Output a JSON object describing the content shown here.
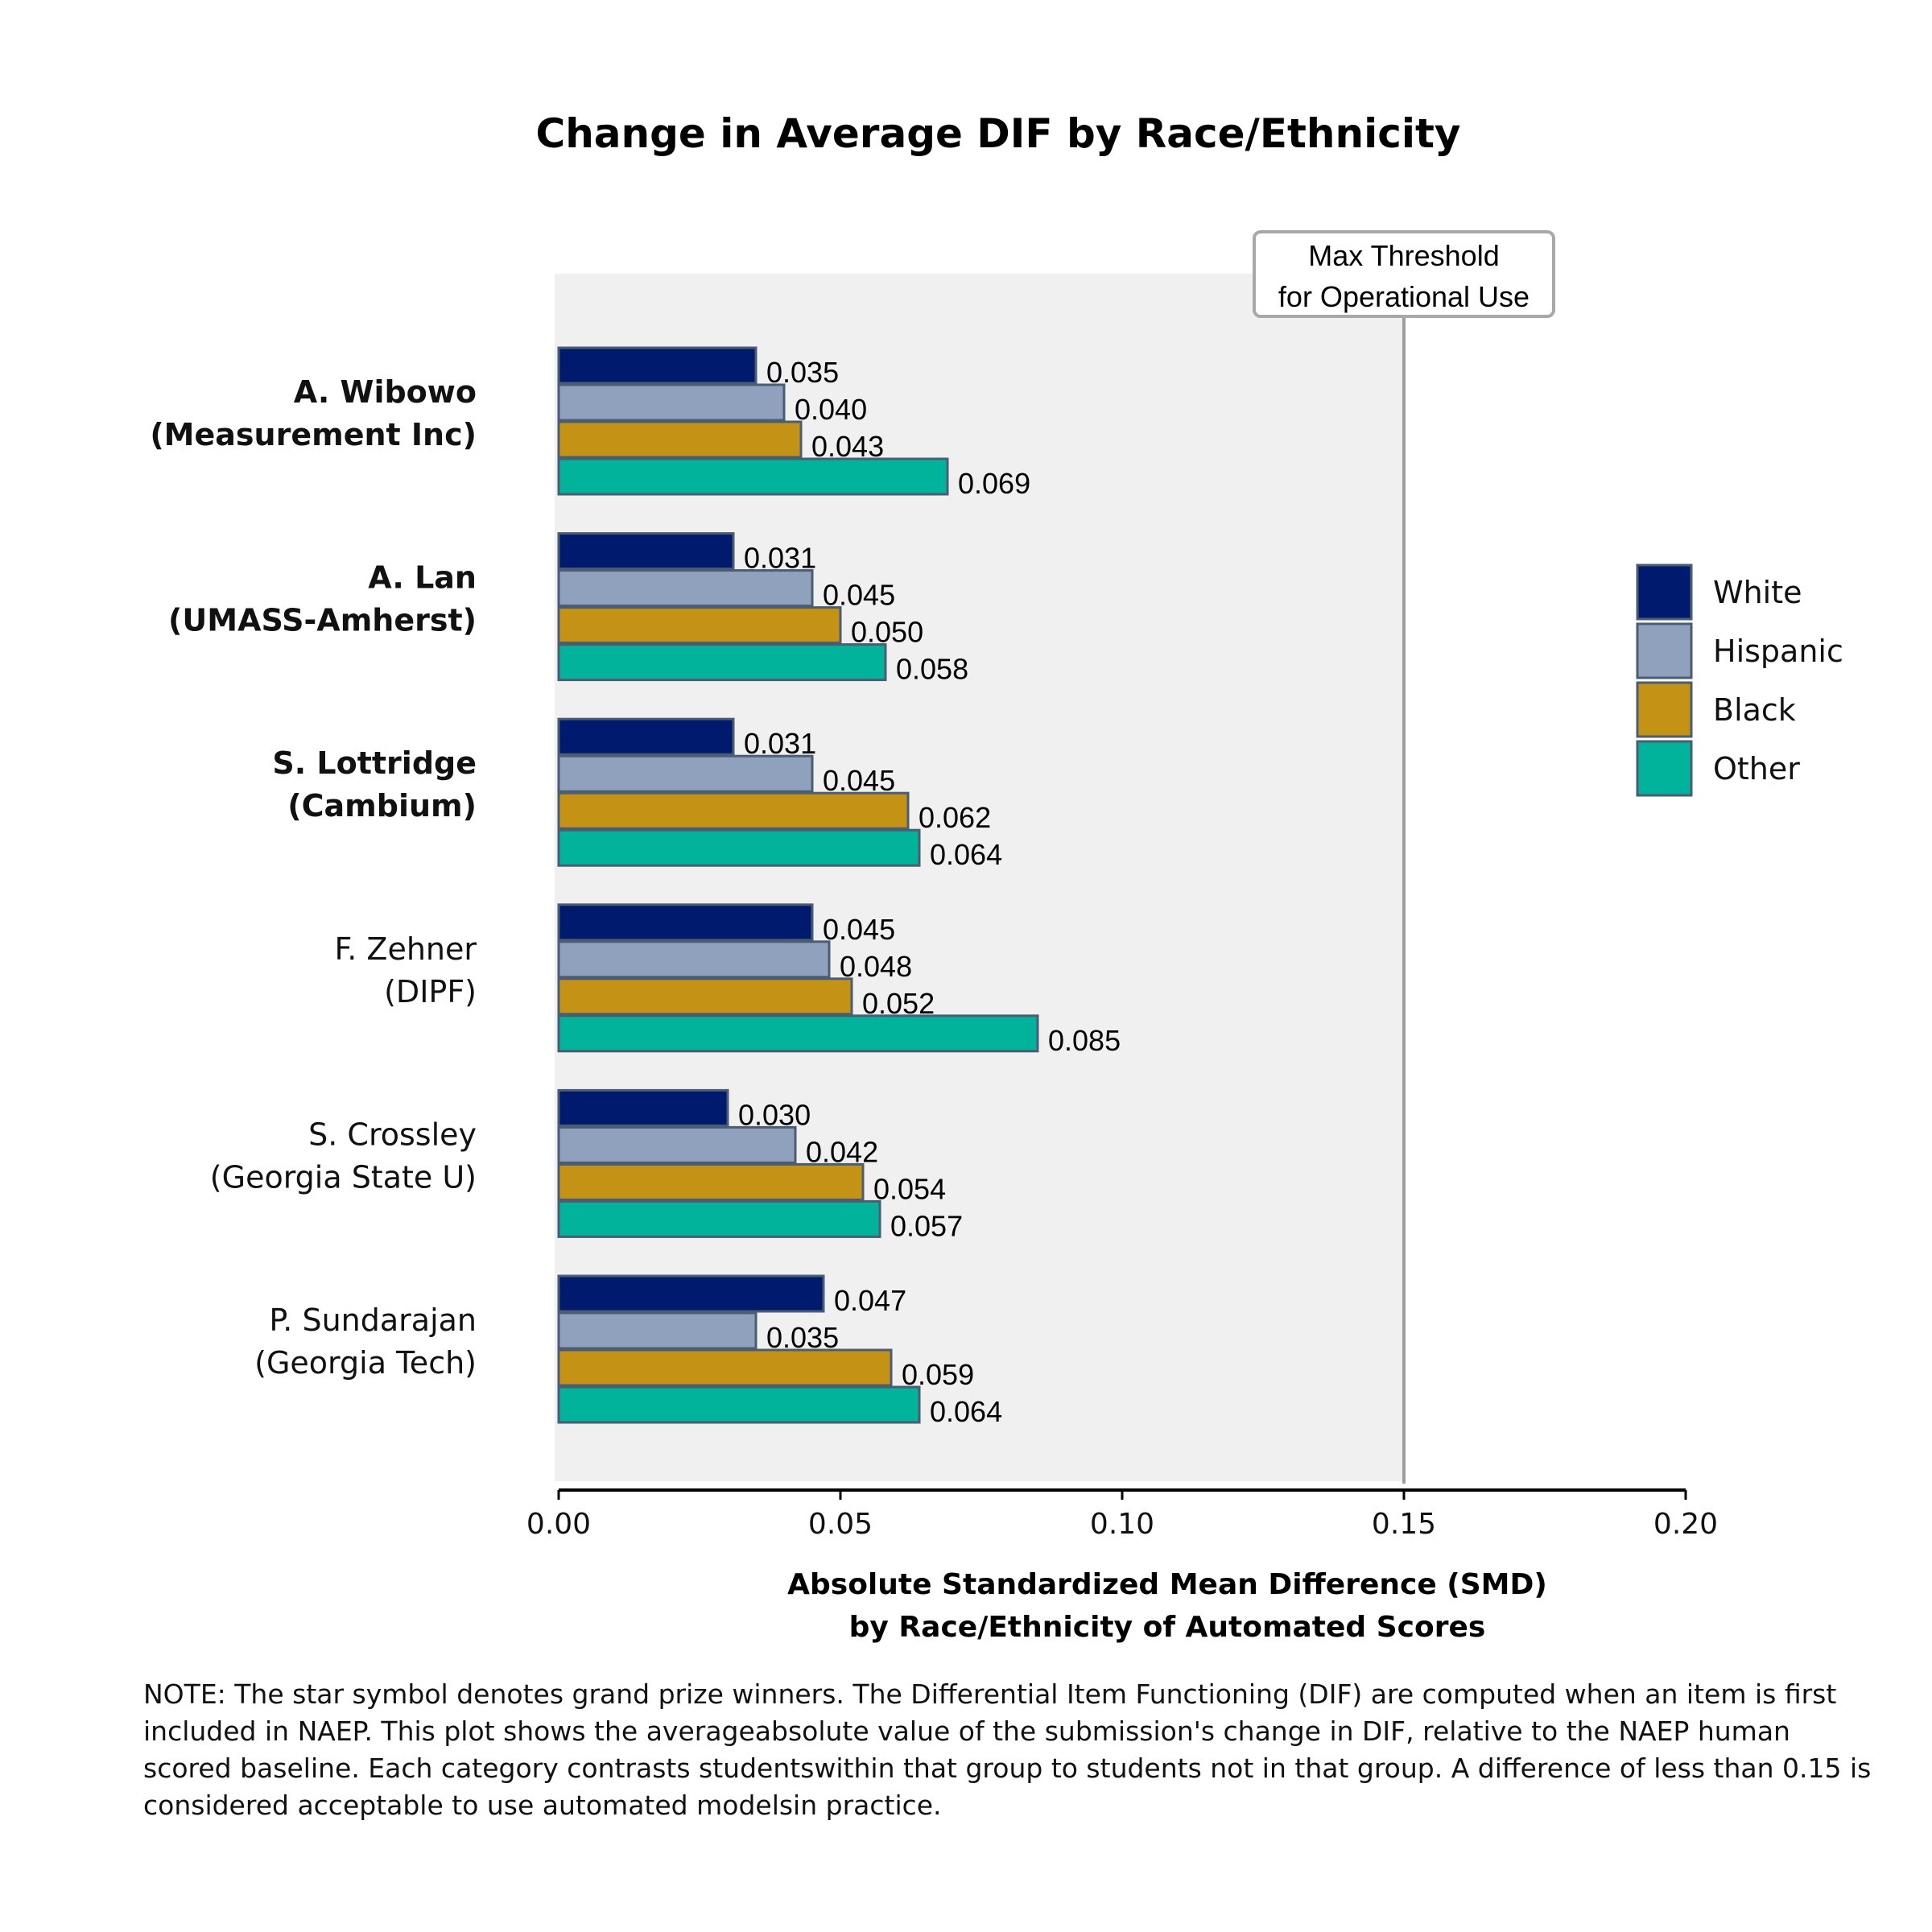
{
  "chart_data": {
    "type": "bar",
    "orientation": "horizontal",
    "title": "Change in Average DIF by Race/Ethnicity",
    "xlabel_line1": "Absolute Standardized Mean Difference (SMD)",
    "xlabel_line2": "by Race/Ethnicity of Automated Scores",
    "xlim": [
      0,
      0.2
    ],
    "xticks": [
      "0.00",
      "0.05",
      "0.10",
      "0.15",
      "0.20"
    ],
    "categories": [
      {
        "name": "A. Wibowo",
        "org": "(Measurement Inc)",
        "bold": true
      },
      {
        "name": "A. Lan",
        "org": "(UMASS-Amherst)",
        "bold": true
      },
      {
        "name": "S. Lottridge",
        "org": "(Cambium)",
        "bold": true
      },
      {
        "name": "F. Zehner",
        "org": "(DIPF)",
        "bold": false
      },
      {
        "name": "S. Crossley",
        "org": "(Georgia State U)",
        "bold": false
      },
      {
        "name": "P. Sundarajan",
        "org": "(Georgia Tech)",
        "bold": false
      }
    ],
    "series": [
      {
        "name": "White",
        "color": "#001a6e",
        "values": [
          0.035,
          0.031,
          0.031,
          0.045,
          0.03,
          0.047
        ],
        "labels": [
          "0.035",
          "0.031",
          "0.031",
          "0.045",
          "0.030",
          "0.047"
        ]
      },
      {
        "name": "Hispanic",
        "color": "#8fa1bd",
        "values": [
          0.04,
          0.045,
          0.045,
          0.048,
          0.042,
          0.035
        ],
        "labels": [
          "0.040",
          "0.045",
          "0.045",
          "0.048",
          "0.042",
          "0.035"
        ]
      },
      {
        "name": "Black",
        "color": "#c49316",
        "values": [
          0.043,
          0.05,
          0.062,
          0.052,
          0.054,
          0.059
        ],
        "labels": [
          "0.043",
          "0.050",
          "0.062",
          "0.052",
          "0.054",
          "0.059"
        ]
      },
      {
        "name": "Other",
        "color": "#00b39a",
        "values": [
          0.069,
          0.058,
          0.064,
          0.085,
          0.057,
          0.064
        ],
        "labels": [
          "0.069",
          "0.058",
          "0.064",
          "0.085",
          "0.057",
          "0.064"
        ]
      }
    ],
    "threshold": {
      "value": 0.15,
      "label_line1": "Max Threshold",
      "label_line2": "for Operational Use"
    },
    "legend_position": "right",
    "background": "#f0f0f0",
    "bar_edge_color": "#4a5d73"
  },
  "note": "NOTE: The star symbol denotes grand prize winners. The Differential Item Functioning (DIF) are computed when an item is first included in NAEP. This plot shows the averageabsolute value of the submission's change in DIF, relative to the NAEP human scored baseline. Each category contrasts studentswithin that group to students not in that group. A difference of less than 0.15 is considered acceptable to use automated modelsin practice."
}
